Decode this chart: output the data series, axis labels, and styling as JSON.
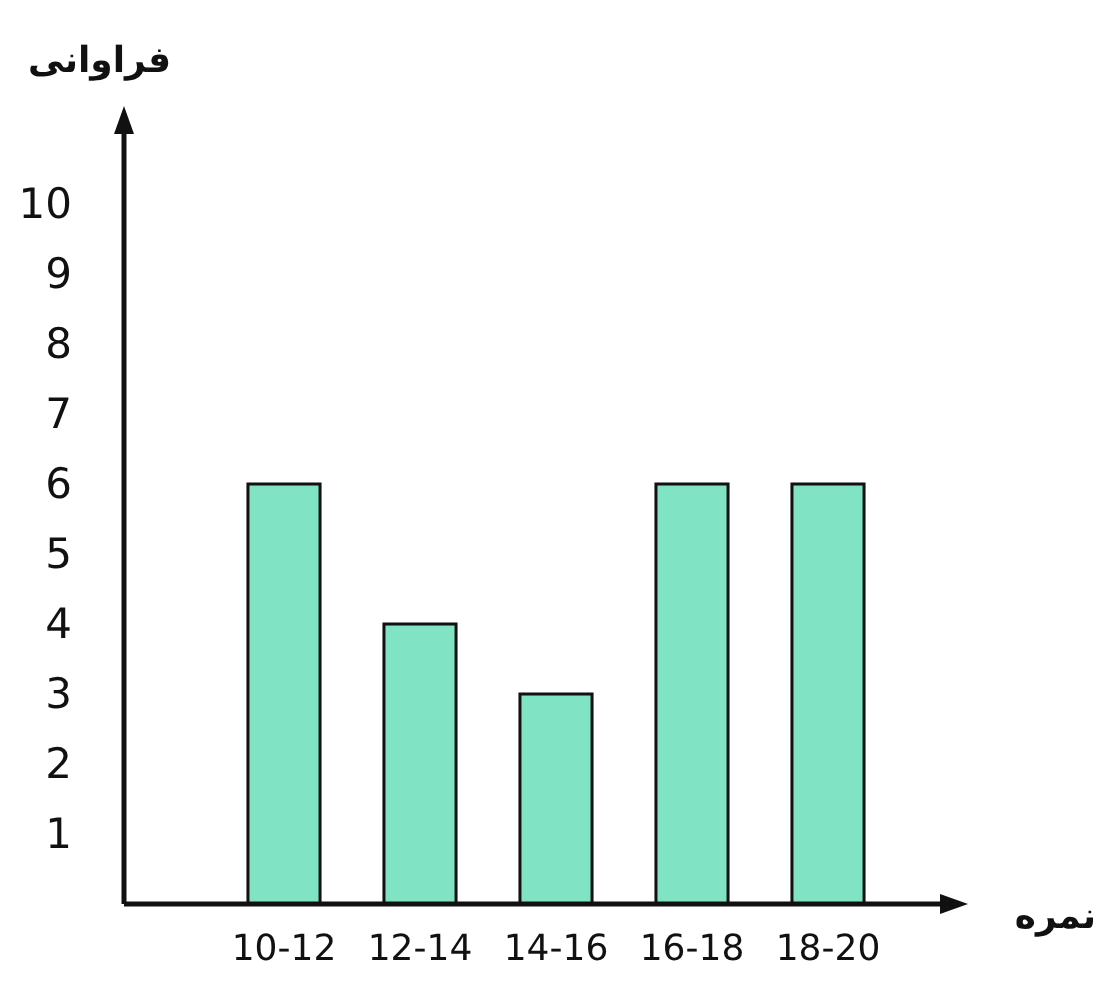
{
  "chart_data": {
    "type": "bar",
    "xlabel": "نمره",
    "ylabel": "فراوانی",
    "categories": [
      "10-12",
      "12-14",
      "14-16",
      "16-18",
      "18-20"
    ],
    "values": [
      6,
      4,
      3,
      6,
      6
    ],
    "color": "#7fe3c4",
    "ylim": [
      0,
      11
    ],
    "yticks": [
      1,
      2,
      3,
      4,
      5,
      6,
      7,
      8,
      9,
      10
    ]
  }
}
